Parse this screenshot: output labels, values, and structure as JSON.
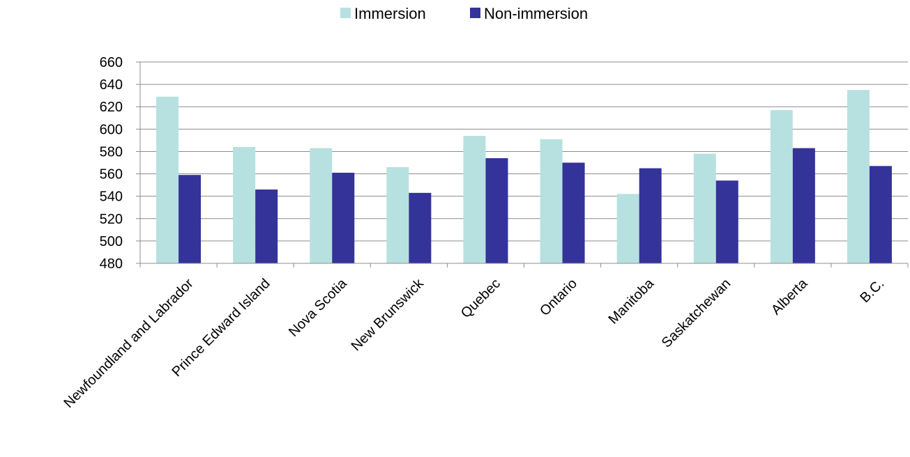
{
  "chart_data": {
    "type": "bar",
    "categories": [
      "Newfoundland and Labrador",
      "Prince Edward Island",
      "Nova Scotia",
      "New Brunswick",
      "Quebec",
      "Ontario",
      "Manitoba",
      "Saskatchewan",
      "Alberta",
      "B.C."
    ],
    "series": [
      {
        "name": "Immersion",
        "color": "#b7e1e1",
        "values": [
          629,
          584,
          583,
          566,
          594,
          591,
          542,
          578,
          617,
          635
        ]
      },
      {
        "name": "Non-immersion",
        "color": "#333399",
        "values": [
          559,
          546,
          561,
          543,
          574,
          570,
          565,
          554,
          583,
          567
        ]
      }
    ],
    "yticks": [
      480,
      500,
      520,
      540,
      560,
      580,
      600,
      620,
      640,
      660
    ],
    "ylim": [
      480,
      660
    ],
    "grid": true,
    "legend_position": "top"
  }
}
